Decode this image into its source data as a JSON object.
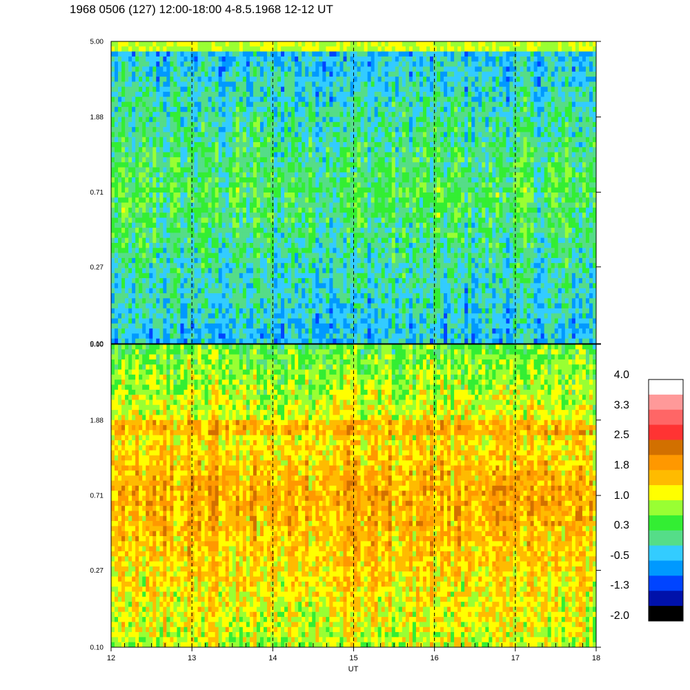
{
  "title": "1968 0506 (127) 12:00-18:00 4-8.5.1968  12-12 UT",
  "chart_data": [
    {
      "type": "heatmap",
      "panel": "top",
      "x_range": [
        12,
        18
      ],
      "y_scale": "log",
      "y_range": [
        0.1,
        5.0
      ],
      "y_ticks": [
        "5.00",
        "1.88",
        "0.71",
        "0.27",
        "0.10"
      ],
      "vertical_dashed_lines_at": [
        13,
        14,
        15,
        16,
        17
      ],
      "dominant_value_low": -0.5,
      "dominant_value_mid": 0.3,
      "dominant_value_high": -0.5
    },
    {
      "type": "heatmap",
      "panel": "bottom",
      "x_range": [
        12,
        18
      ],
      "y_scale": "log",
      "y_range": [
        0.1,
        5.0
      ],
      "y_ticks": [
        "5.00",
        "1.88",
        "0.71",
        "0.27",
        "0.10"
      ],
      "x_ticks": [
        "12",
        "13",
        "14",
        "15",
        "16",
        "17",
        "18"
      ],
      "xlabel": "UT",
      "vertical_dashed_lines_at": [
        13,
        14,
        15,
        16,
        17
      ],
      "dominant_value_low": 1.0,
      "dominant_value_mid": 1.8,
      "dominant_value_high": 0.5
    }
  ],
  "colorbar": {
    "labels": [
      "4.0",
      "3.3",
      "2.5",
      "1.8",
      "1.0",
      "0.3",
      "-0.5",
      "-1.3",
      "-2.0"
    ],
    "colors": [
      "#ffffff",
      "#ff9999",
      "#ff6666",
      "#ff3333",
      "#d27000",
      "#ff9800",
      "#ffbb00",
      "#ffff00",
      "#99ff33",
      "#33ee33",
      "#55dd88",
      "#33ccff",
      "#0099ff",
      "#0044ff",
      "#0011aa",
      "#000000"
    ]
  }
}
